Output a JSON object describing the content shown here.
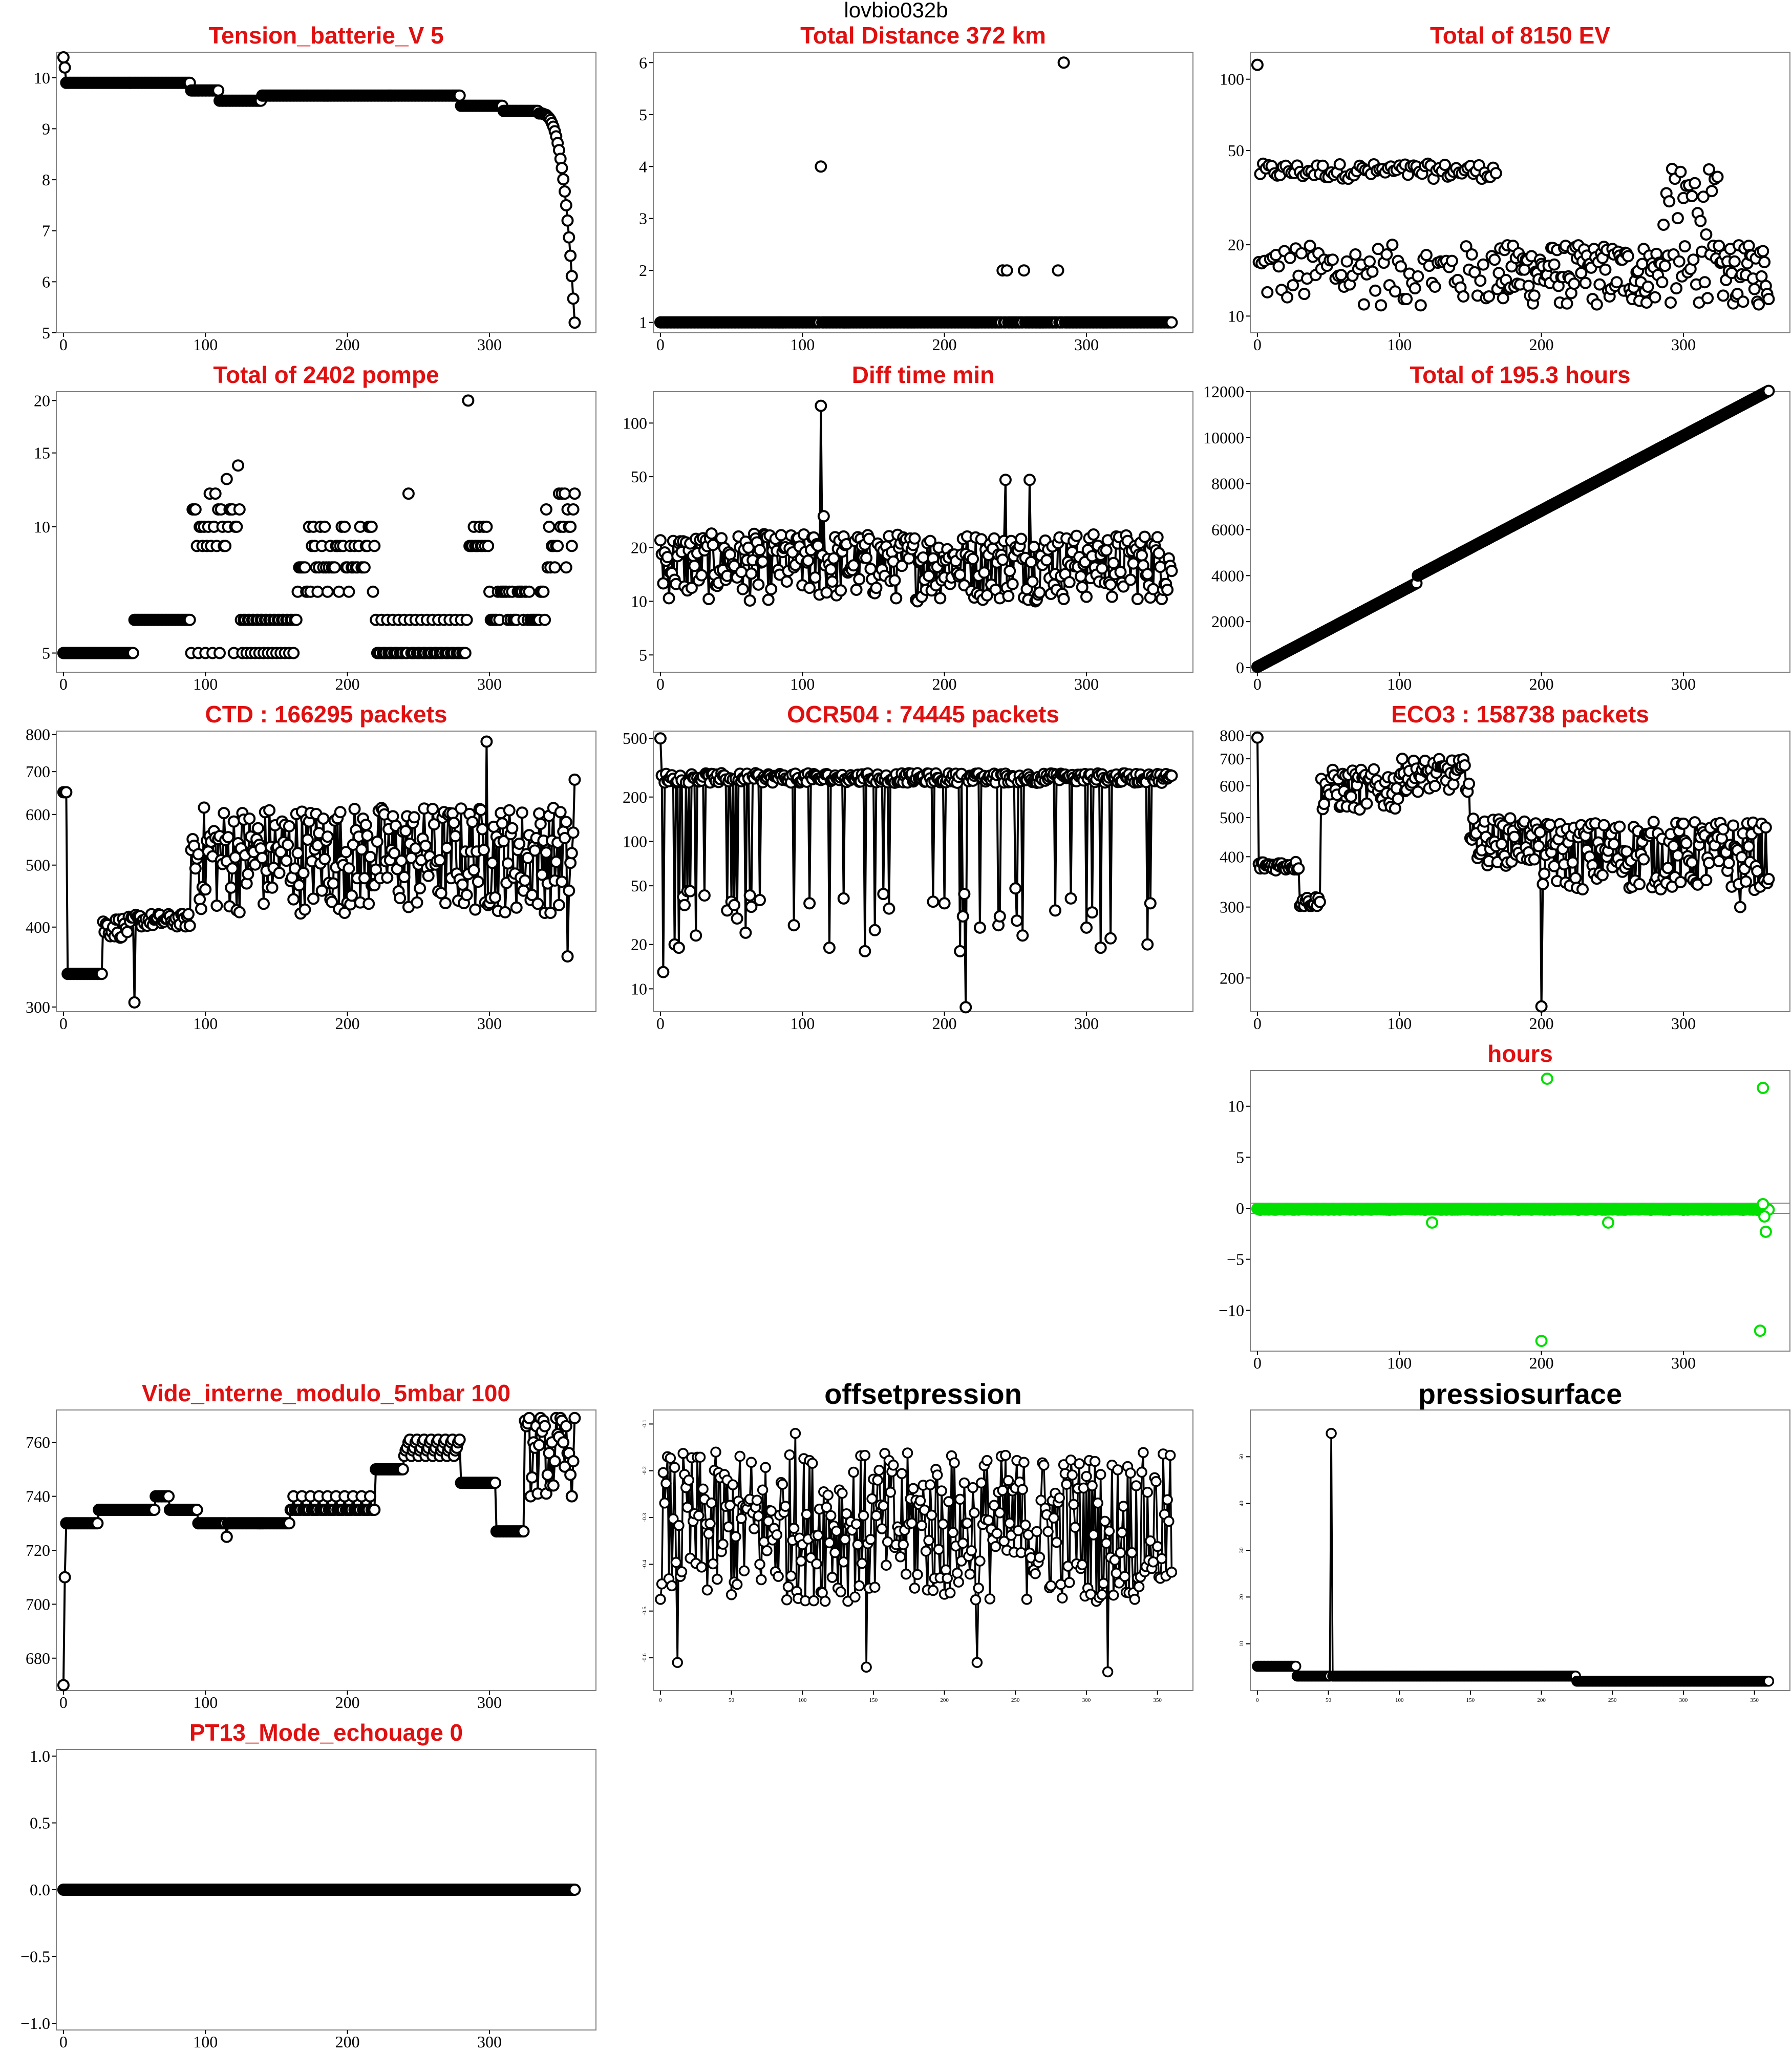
{
  "title": "lovbio032b",
  "colors": {
    "title_red": "#e01010",
    "green": "#00e000",
    "black": "#000000"
  },
  "chart_data": [
    {
      "id": "tension",
      "type": "line",
      "title": "Tension_batterie_V 5",
      "xlim": [
        -5,
        375
      ],
      "ylim": [
        5,
        10.5
      ],
      "scale": "linear",
      "xticks": [
        0,
        100,
        200,
        300
      ],
      "yticks": [
        5,
        6,
        7,
        8,
        9,
        10
      ],
      "gen": "tension",
      "series": [
        {
          "name": "",
          "values": []
        }
      ]
    },
    {
      "id": "distance",
      "type": "scatter",
      "title": "Total Distance  372  km",
      "xlim": [
        -5,
        375
      ],
      "ylim": [
        0.8,
        6.2
      ],
      "scale": "linear",
      "xticks": [
        0,
        100,
        200,
        300
      ],
      "yticks": [
        1,
        2,
        3,
        4,
        5,
        6
      ],
      "gen": "distance",
      "outliers": [
        [
          113,
          4
        ],
        [
          241,
          2
        ],
        [
          244,
          2
        ],
        [
          256,
          2
        ],
        [
          280,
          2
        ],
        [
          284,
          6
        ]
      ]
    },
    {
      "id": "ev",
      "type": "scatter",
      "title": "Total of  8150  EV",
      "xlim": [
        -5,
        375
      ],
      "ylim": [
        8.5,
        130
      ],
      "scale": "log",
      "xticks": [
        0,
        100,
        200,
        300
      ],
      "yticks": [
        10,
        20,
        50,
        100
      ],
      "gen": "ev"
    },
    {
      "id": "pompe",
      "type": "scatter",
      "title": "Total of  2402  pompe",
      "xlim": [
        -5,
        375
      ],
      "ylim": [
        4.5,
        21
      ],
      "scale": "log",
      "xticks": [
        0,
        100,
        200,
        300
      ],
      "yticks": [
        5,
        10,
        15,
        20
      ],
      "gen": "pompe"
    },
    {
      "id": "difftime",
      "type": "line",
      "title": "Diff time min",
      "xlim": [
        -5,
        375
      ],
      "ylim": [
        4,
        150
      ],
      "scale": "log",
      "xticks": [
        0,
        100,
        200,
        300
      ],
      "yticks": [
        5,
        10,
        20,
        50,
        100
      ],
      "gen": "difftime"
    },
    {
      "id": "hours_total",
      "type": "line",
      "title": "Total of  195.3  hours",
      "xlim": [
        -5,
        375
      ],
      "ylim": [
        -200,
        12000
      ],
      "scale": "linear",
      "xticks": [
        0,
        100,
        200,
        300
      ],
      "yticks": [
        0,
        2000,
        4000,
        6000,
        8000,
        10000,
        12000
      ],
      "gen": "hours_total"
    },
    {
      "id": "ctd",
      "type": "line",
      "title": "CTD  : 166295  packets",
      "xlim": [
        -5,
        375
      ],
      "ylim": [
        295,
        810
      ],
      "scale": "log",
      "xticks": [
        0,
        100,
        200,
        300
      ],
      "yticks": [
        300,
        400,
        500,
        600,
        700,
        800
      ],
      "gen": "ctd"
    },
    {
      "id": "ocr",
      "type": "line",
      "title": "OCR504  : 74445  packets",
      "xlim": [
        -5,
        375
      ],
      "ylim": [
        7,
        560
      ],
      "scale": "log",
      "xticks": [
        0,
        100,
        200,
        300
      ],
      "yticks": [
        10,
        20,
        50,
        100,
        200,
        500
      ],
      "gen": "ocr"
    },
    {
      "id": "eco3",
      "type": "line",
      "title": "ECO3  : 158738  packets",
      "xlim": [
        -5,
        375
      ],
      "ylim": [
        165,
        820
      ],
      "scale": "log",
      "xticks": [
        0,
        100,
        200,
        300
      ],
      "yticks": [
        200,
        300,
        400,
        500,
        600,
        700,
        800
      ],
      "gen": "eco3"
    },
    {
      "id": "hours",
      "type": "scatter",
      "title": "hours",
      "xlim": [
        -5,
        375
      ],
      "ylim": [
        -14,
        13.5
      ],
      "scale": "linear",
      "xticks": [
        0,
        100,
        200,
        300
      ],
      "yticks": [
        -10,
        -5,
        0,
        5,
        10
      ],
      "gen": "hours",
      "outliers": [
        [
          123,
          -1.4
        ],
        [
          204,
          12.7
        ],
        [
          200,
          -13
        ],
        [
          247,
          -1.4
        ],
        [
          356,
          11.8
        ],
        [
          354,
          -12
        ],
        [
          356,
          0.4
        ],
        [
          357,
          -0.8
        ],
        [
          358,
          -2.3
        ]
      ]
    },
    {
      "id": "vide",
      "type": "line",
      "title": "Vide_interne_modulo_5mbar 100",
      "xlim": [
        -5,
        375
      ],
      "ylim": [
        668,
        772
      ],
      "scale": "linear",
      "xticks": [
        0,
        100,
        200,
        300
      ],
      "yticks": [
        680,
        700,
        720,
        740,
        760
      ],
      "gen": "vide"
    },
    {
      "id": "offset",
      "type": "line",
      "title": "offsetpression",
      "xlim": [
        -5,
        375
      ],
      "ylim": [
        -0.67,
        -0.07
      ],
      "scale": "linear",
      "xticks": [
        0,
        50,
        100,
        150,
        200,
        250,
        300,
        350
      ],
      "yticks": [
        -0.6,
        -0.5,
        -0.4,
        -0.3,
        -0.2,
        -0.1
      ],
      "gen": "offset"
    },
    {
      "id": "pressio",
      "type": "line",
      "title": "pressiosurface",
      "xlim": [
        -5,
        375
      ],
      "ylim": [
        0,
        60
      ],
      "scale": "linear",
      "xticks": [
        0,
        50,
        100,
        150,
        200,
        250,
        300,
        350
      ],
      "yticks": [
        10,
        20,
        30,
        40,
        50
      ],
      "gen": "pressio"
    },
    {
      "id": "pt13",
      "type": "line",
      "title": "PT13_Mode_echouage  0",
      "xlim": [
        -5,
        375
      ],
      "ylim": [
        -1.05,
        1.05
      ],
      "scale": "linear",
      "xticks": [
        0,
        100,
        200,
        300
      ],
      "yticks": [
        -1.0,
        -0.5,
        0.0,
        0.5,
        1.0
      ],
      "gen": "pt13"
    }
  ]
}
